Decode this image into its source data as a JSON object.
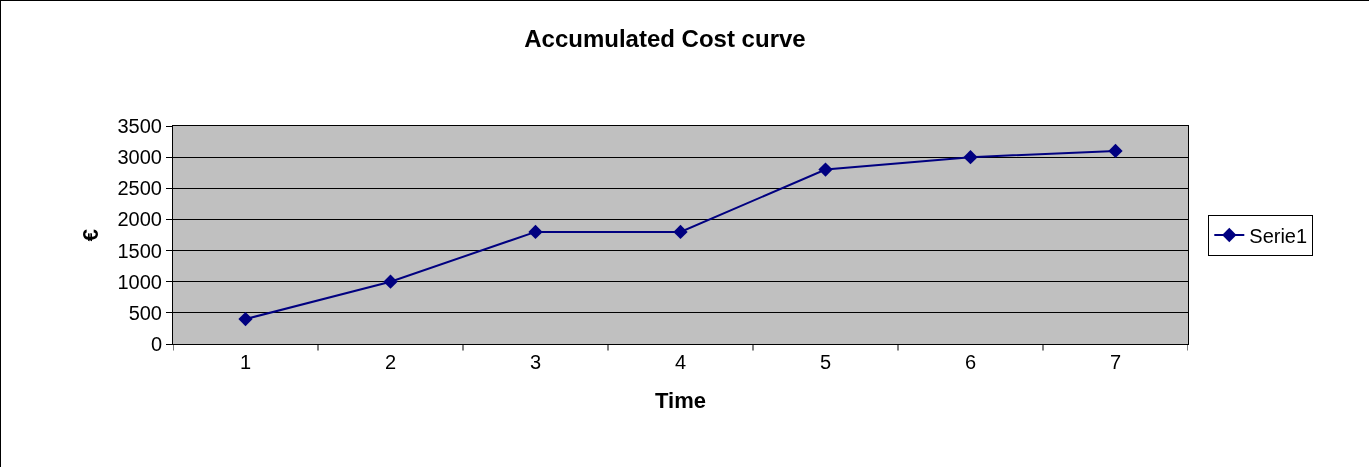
{
  "chart_data": {
    "type": "line",
    "title": "Accumulated Cost curve",
    "xlabel": "Time",
    "ylabel": "€",
    "categories": [
      "1",
      "2",
      "3",
      "4",
      "5",
      "6",
      "7"
    ],
    "series": [
      {
        "name": "Serie1",
        "color": "#000080",
        "values": [
          400,
          1000,
          1800,
          1800,
          2800,
          3000,
          3100
        ]
      }
    ],
    "ylim": [
      0,
      3500
    ],
    "yticks": [
      0,
      500,
      1000,
      1500,
      2000,
      2500,
      3000,
      3500
    ],
    "grid": "y",
    "legend": "right",
    "marker": "diamond",
    "line_style": "solid"
  }
}
